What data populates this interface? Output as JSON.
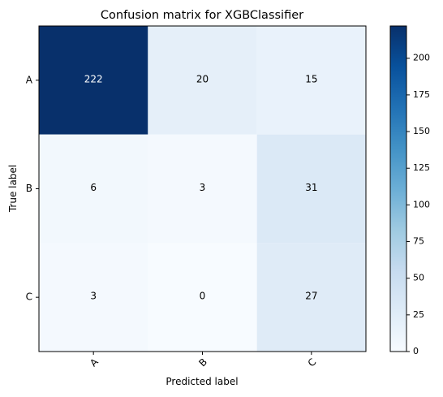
{
  "chart_data": {
    "type": "heatmap",
    "title": "Confusion matrix for XGBClassifier",
    "xlabel": "Predicted label",
    "ylabel": "True label",
    "x_categories": [
      "A",
      "B",
      "C"
    ],
    "y_categories": [
      "A",
      "B",
      "C"
    ],
    "values": [
      [
        222,
        20,
        15
      ],
      [
        6,
        3,
        31
      ],
      [
        3,
        0,
        27
      ]
    ],
    "colormap": "Blues",
    "color_range": [
      0,
      222
    ],
    "colorbar_ticks": [
      0,
      25,
      50,
      75,
      100,
      125,
      150,
      175,
      200
    ],
    "grid": false
  }
}
